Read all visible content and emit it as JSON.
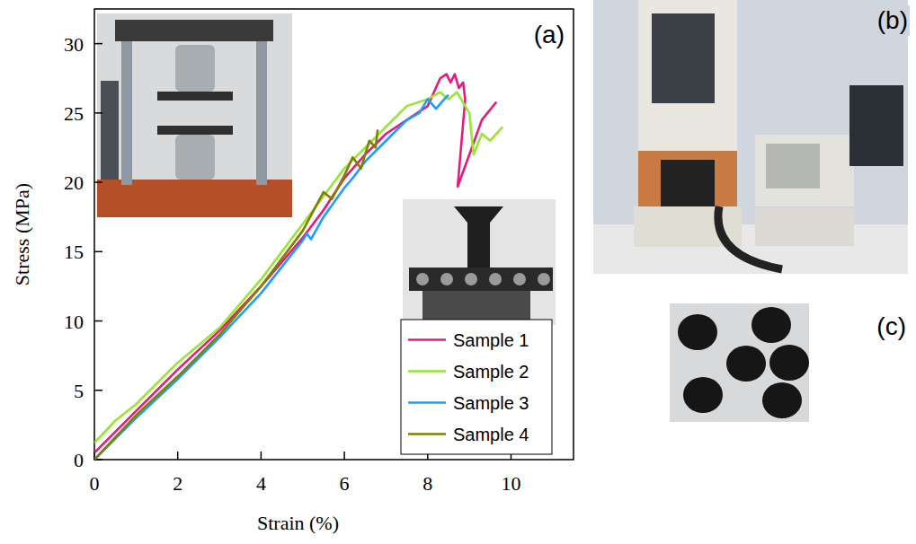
{
  "chart_data": {
    "type": "line",
    "x_label": "Strain (%)",
    "y_label": "Stress (MPa)",
    "xlim": [
      0,
      11.5
    ],
    "ylim": [
      0,
      32.5
    ],
    "xticks": [
      0,
      2,
      4,
      6,
      8,
      10
    ],
    "yticks": [
      0,
      5,
      10,
      15,
      20,
      25,
      30
    ],
    "legend": "lower right",
    "annotations": [
      "(a)",
      "(b)",
      "(c)"
    ],
    "series": [
      {
        "name": "Sample 1",
        "color": "#e6197f",
        "x": [
          0,
          1,
          2,
          3,
          4,
          5,
          5.5,
          6,
          6.5,
          7,
          7.5,
          8,
          8.3,
          8.45,
          8.55,
          8.65,
          8.75,
          8.85,
          8.9,
          8.72,
          9.0,
          9.3,
          9.65
        ],
        "values": [
          0.5,
          3.5,
          6.5,
          9.3,
          12.5,
          16,
          18,
          20.3,
          22,
          23.5,
          24.5,
          25.5,
          27.5,
          27.8,
          27.2,
          27.8,
          26.8,
          27.2,
          26,
          19.7,
          22,
          24.5,
          25.8
        ]
      },
      {
        "name": "Sample 2",
        "color": "#99e633",
        "x": [
          0,
          0.5,
          1,
          2,
          2.2,
          3,
          4,
          5,
          5.5,
          6,
          6.5,
          7,
          7.5,
          8,
          8.3,
          8.5,
          8.7,
          9.0,
          9.1,
          9.3,
          9.5,
          9.8
        ],
        "values": [
          1.2,
          2.8,
          4,
          7,
          7.5,
          9.5,
          13,
          17,
          19,
          21,
          22.5,
          24,
          25.5,
          26,
          26.5,
          26,
          26.5,
          25,
          22,
          23.5,
          23,
          24
        ]
      },
      {
        "name": "Sample 3",
        "color": "#1a9fff",
        "x": [
          0,
          1,
          2,
          3,
          4,
          5,
          5.1,
          5.2,
          5.5,
          6,
          6.2,
          6.5,
          7,
          7.5,
          7.8,
          8,
          8.2,
          8.4,
          8.5
        ],
        "values": [
          0,
          3,
          5.8,
          8.8,
          12,
          15.8,
          16.3,
          15.9,
          17.5,
          19.6,
          20.3,
          21.5,
          23,
          24.5,
          25,
          26,
          25.3,
          26,
          26.3
        ]
      },
      {
        "name": "Sample 4",
        "color": "#808000",
        "x": [
          0,
          1,
          2,
          3,
          4,
          5,
          5.5,
          5.7,
          6,
          6.2,
          6.4,
          6.6,
          6.75,
          6.8
        ],
        "values": [
          0,
          3.2,
          6,
          9,
          12.5,
          16.5,
          19.3,
          18.8,
          20.5,
          21.8,
          21,
          23,
          22.5,
          23.8
        ]
      }
    ]
  }
}
